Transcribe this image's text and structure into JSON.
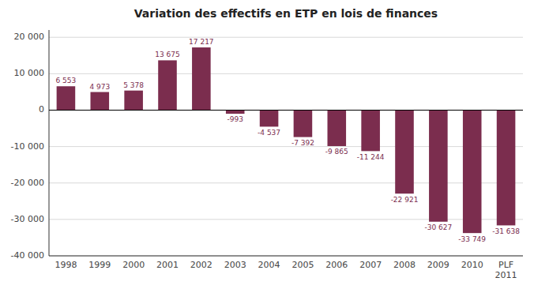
{
  "chart_data": {
    "type": "bar",
    "title": "Variation des effectifs en ETP en lois de finances",
    "categories": [
      "1998",
      "1999",
      "2000",
      "2001",
      "2002",
      "2003",
      "2004",
      "2005",
      "2006",
      "2007",
      "2008",
      "2009",
      "2010",
      "PLF\n2011"
    ],
    "values": [
      6553,
      4973,
      5378,
      13675,
      17217,
      -993,
      -4537,
      -7392,
      -9865,
      -11244,
      -22921,
      -30627,
      -33749,
      -31638
    ],
    "value_labels": [
      "6 553",
      "4 973",
      "5 378",
      "13 675",
      "17 217",
      "-993",
      "-4 537",
      "-7 392",
      "-9 865",
      "-11 244",
      "-22 921",
      "-30 627",
      "-33 749",
      "-31 638"
    ],
    "color": "#7B2D4E",
    "ylim": [
      -40000,
      22000
    ],
    "yticks": [
      {
        "value": -40000,
        "label": "-40 000"
      },
      {
        "value": -30000,
        "label": "-30 000"
      },
      {
        "value": -20000,
        "label": "-20 000"
      },
      {
        "value": -10000,
        "label": "-10 000"
      },
      0,
      {
        "value": 10000,
        "label": "10 000"
      },
      {
        "value": 20000,
        "label": "20 000"
      }
    ],
    "grid": true,
    "data_labels": true
  }
}
